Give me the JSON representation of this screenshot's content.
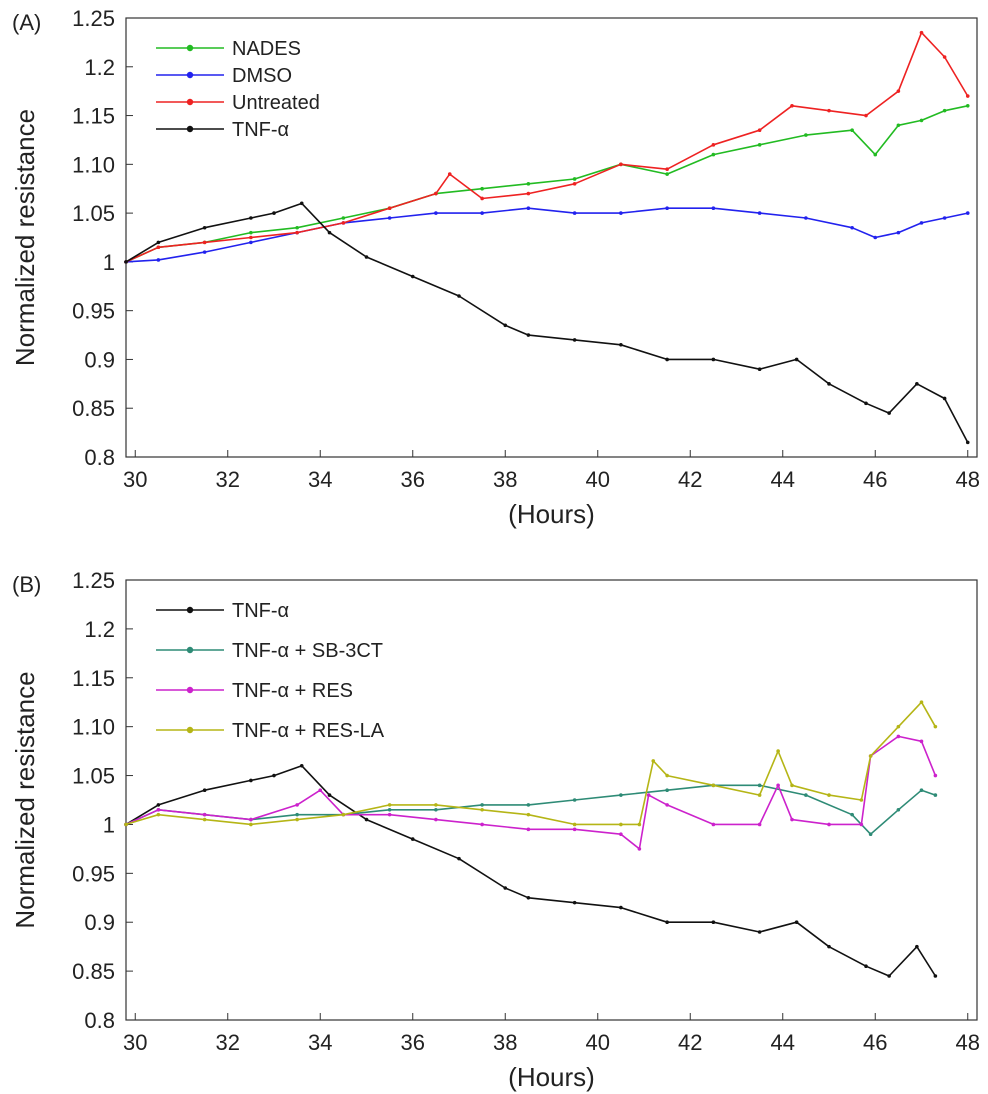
{
  "chart_data": [
    {
      "type": "line",
      "panel_label": "(A)",
      "xlabel": "(Hours)",
      "ylabel": "Normalized resistance",
      "xlim": [
        29.8,
        48.2
      ],
      "ylim": [
        0.8,
        1.25
      ],
      "xticks": [
        30,
        32,
        34,
        36,
        38,
        40,
        42,
        44,
        46,
        48
      ],
      "yticks": [
        0.8,
        0.85,
        0.9,
        0.95,
        1,
        1.05,
        1.1,
        1.15,
        1.2,
        1.25
      ],
      "ytick_labels": [
        "0.8",
        "0.85",
        "0.9",
        "0.95",
        "1",
        "1.05",
        "1.10",
        "1.15",
        "1.2",
        "1.25"
      ],
      "legend_position": "top-left",
      "grid": false,
      "series": [
        {
          "name": "NADES",
          "color": "#22bb22",
          "x": [
            29.8,
            30.5,
            31.5,
            32.5,
            33.5,
            34.5,
            35.5,
            36.5,
            37.5,
            38.5,
            39.5,
            40.5,
            41.5,
            42.5,
            43.5,
            44.5,
            45.5,
            46.0,
            46.5,
            47.0,
            47.5,
            48.0
          ],
          "y": [
            1.0,
            1.015,
            1.02,
            1.03,
            1.035,
            1.045,
            1.055,
            1.07,
            1.075,
            1.08,
            1.085,
            1.1,
            1.09,
            1.11,
            1.12,
            1.13,
            1.135,
            1.11,
            1.14,
            1.145,
            1.155,
            1.16
          ]
        },
        {
          "name": "DMSO",
          "color": "#2222ee",
          "x": [
            29.8,
            30.5,
            31.5,
            32.5,
            33.5,
            34.5,
            35.5,
            36.5,
            37.5,
            38.5,
            39.5,
            40.5,
            41.5,
            42.5,
            43.5,
            44.5,
            45.5,
            46.0,
            46.5,
            47.0,
            47.5,
            48.0
          ],
          "y": [
            1.0,
            1.002,
            1.01,
            1.02,
            1.03,
            1.04,
            1.045,
            1.05,
            1.05,
            1.055,
            1.05,
            1.05,
            1.055,
            1.055,
            1.05,
            1.045,
            1.035,
            1.025,
            1.03,
            1.04,
            1.045,
            1.05
          ]
        },
        {
          "name": "Untreated",
          "color": "#ee2222",
          "x": [
            29.8,
            30.5,
            31.5,
            32.5,
            33.5,
            34.5,
            35.5,
            36.5,
            36.8,
            37.5,
            38.5,
            39.5,
            40.5,
            41.5,
            42.5,
            43.5,
            44.2,
            45.0,
            45.8,
            46.5,
            47.0,
            47.5,
            48.0
          ],
          "y": [
            1.0,
            1.015,
            1.02,
            1.025,
            1.03,
            1.04,
            1.055,
            1.07,
            1.09,
            1.065,
            1.07,
            1.08,
            1.1,
            1.095,
            1.12,
            1.135,
            1.16,
            1.155,
            1.15,
            1.175,
            1.235,
            1.21,
            1.17
          ]
        },
        {
          "name": "TNF-α",
          "color": "#111111",
          "x": [
            29.8,
            30.5,
            31.5,
            32.5,
            33.0,
            33.6,
            34.2,
            35.0,
            36.0,
            37.0,
            38.0,
            38.5,
            39.5,
            40.5,
            41.5,
            42.5,
            43.5,
            44.3,
            45.0,
            45.8,
            46.3,
            46.9,
            47.5,
            48.0
          ],
          "y": [
            1.0,
            1.02,
            1.035,
            1.045,
            1.05,
            1.06,
            1.03,
            1.005,
            0.985,
            0.965,
            0.935,
            0.925,
            0.92,
            0.915,
            0.9,
            0.9,
            0.89,
            0.9,
            0.875,
            0.855,
            0.845,
            0.875,
            0.86,
            0.815
          ]
        }
      ]
    },
    {
      "type": "line",
      "panel_label": "(B)",
      "xlabel": "(Hours)",
      "ylabel": "Normalized resistance",
      "xlim": [
        29.8,
        48.2
      ],
      "ylim": [
        0.8,
        1.25
      ],
      "xticks": [
        30,
        32,
        34,
        36,
        38,
        40,
        42,
        44,
        46,
        48
      ],
      "yticks": [
        0.8,
        0.85,
        0.9,
        0.95,
        1,
        1.05,
        1.1,
        1.15,
        1.2,
        1.25
      ],
      "ytick_labels": [
        "0.8",
        "0.85",
        "0.9",
        "0.95",
        "1",
        "1.05",
        "1.10",
        "1.15",
        "1.2",
        "1.25"
      ],
      "legend_position": "top-left",
      "grid": false,
      "series": [
        {
          "name": "TNF-α",
          "color": "#111111",
          "x": [
            29.8,
            30.5,
            31.5,
            32.5,
            33.0,
            33.6,
            34.2,
            35.0,
            36.0,
            37.0,
            38.0,
            38.5,
            39.5,
            40.5,
            41.5,
            42.5,
            43.5,
            44.3,
            45.0,
            45.8,
            46.3,
            46.9,
            47.3
          ],
          "y": [
            1.0,
            1.02,
            1.035,
            1.045,
            1.05,
            1.06,
            1.03,
            1.005,
            0.985,
            0.965,
            0.935,
            0.925,
            0.92,
            0.915,
            0.9,
            0.9,
            0.89,
            0.9,
            0.875,
            0.855,
            0.845,
            0.875,
            0.845
          ]
        },
        {
          "name": "TNF-α + SB-3CT",
          "color": "#2e8b76",
          "x": [
            29.8,
            30.5,
            31.5,
            32.5,
            33.5,
            34.5,
            35.5,
            36.5,
            37.5,
            38.5,
            39.5,
            40.5,
            41.5,
            42.5,
            43.5,
            44.5,
            45.5,
            45.9,
            46.5,
            47.0,
            47.3
          ],
          "y": [
            1.0,
            1.015,
            1.01,
            1.005,
            1.01,
            1.01,
            1.015,
            1.015,
            1.02,
            1.02,
            1.025,
            1.03,
            1.035,
            1.04,
            1.04,
            1.03,
            1.01,
            0.99,
            1.015,
            1.035,
            1.03
          ]
        },
        {
          "name": "TNF-α + RES",
          "color": "#cc22cc",
          "x": [
            29.8,
            30.5,
            31.5,
            32.5,
            33.5,
            34.0,
            34.5,
            35.5,
            36.5,
            37.5,
            38.5,
            39.5,
            40.5,
            40.9,
            41.1,
            41.5,
            42.5,
            43.5,
            43.9,
            44.2,
            45.0,
            45.7,
            45.9,
            46.5,
            47.0,
            47.3
          ],
          "y": [
            1.0,
            1.015,
            1.01,
            1.005,
            1.02,
            1.035,
            1.01,
            1.01,
            1.005,
            1.0,
            0.995,
            0.995,
            0.99,
            0.975,
            1.03,
            1.02,
            1.0,
            1.0,
            1.04,
            1.005,
            1.0,
            1.0,
            1.07,
            1.09,
            1.085,
            1.05
          ]
        },
        {
          "name": "TNF-α + RES-LA",
          "color": "#b5b516",
          "x": [
            29.8,
            30.5,
            31.5,
            32.5,
            33.5,
            34.5,
            35.5,
            36.5,
            37.5,
            38.5,
            39.5,
            40.5,
            40.9,
            41.2,
            41.5,
            42.5,
            43.5,
            43.9,
            44.2,
            45.0,
            45.7,
            45.9,
            46.5,
            47.0,
            47.3
          ],
          "y": [
            1.0,
            1.01,
            1.005,
            1.0,
            1.005,
            1.01,
            1.02,
            1.02,
            1.015,
            1.01,
            1.0,
            1.0,
            1.0,
            1.065,
            1.05,
            1.04,
            1.03,
            1.075,
            1.04,
            1.03,
            1.025,
            1.07,
            1.1,
            1.125,
            1.1
          ]
        }
      ]
    }
  ]
}
